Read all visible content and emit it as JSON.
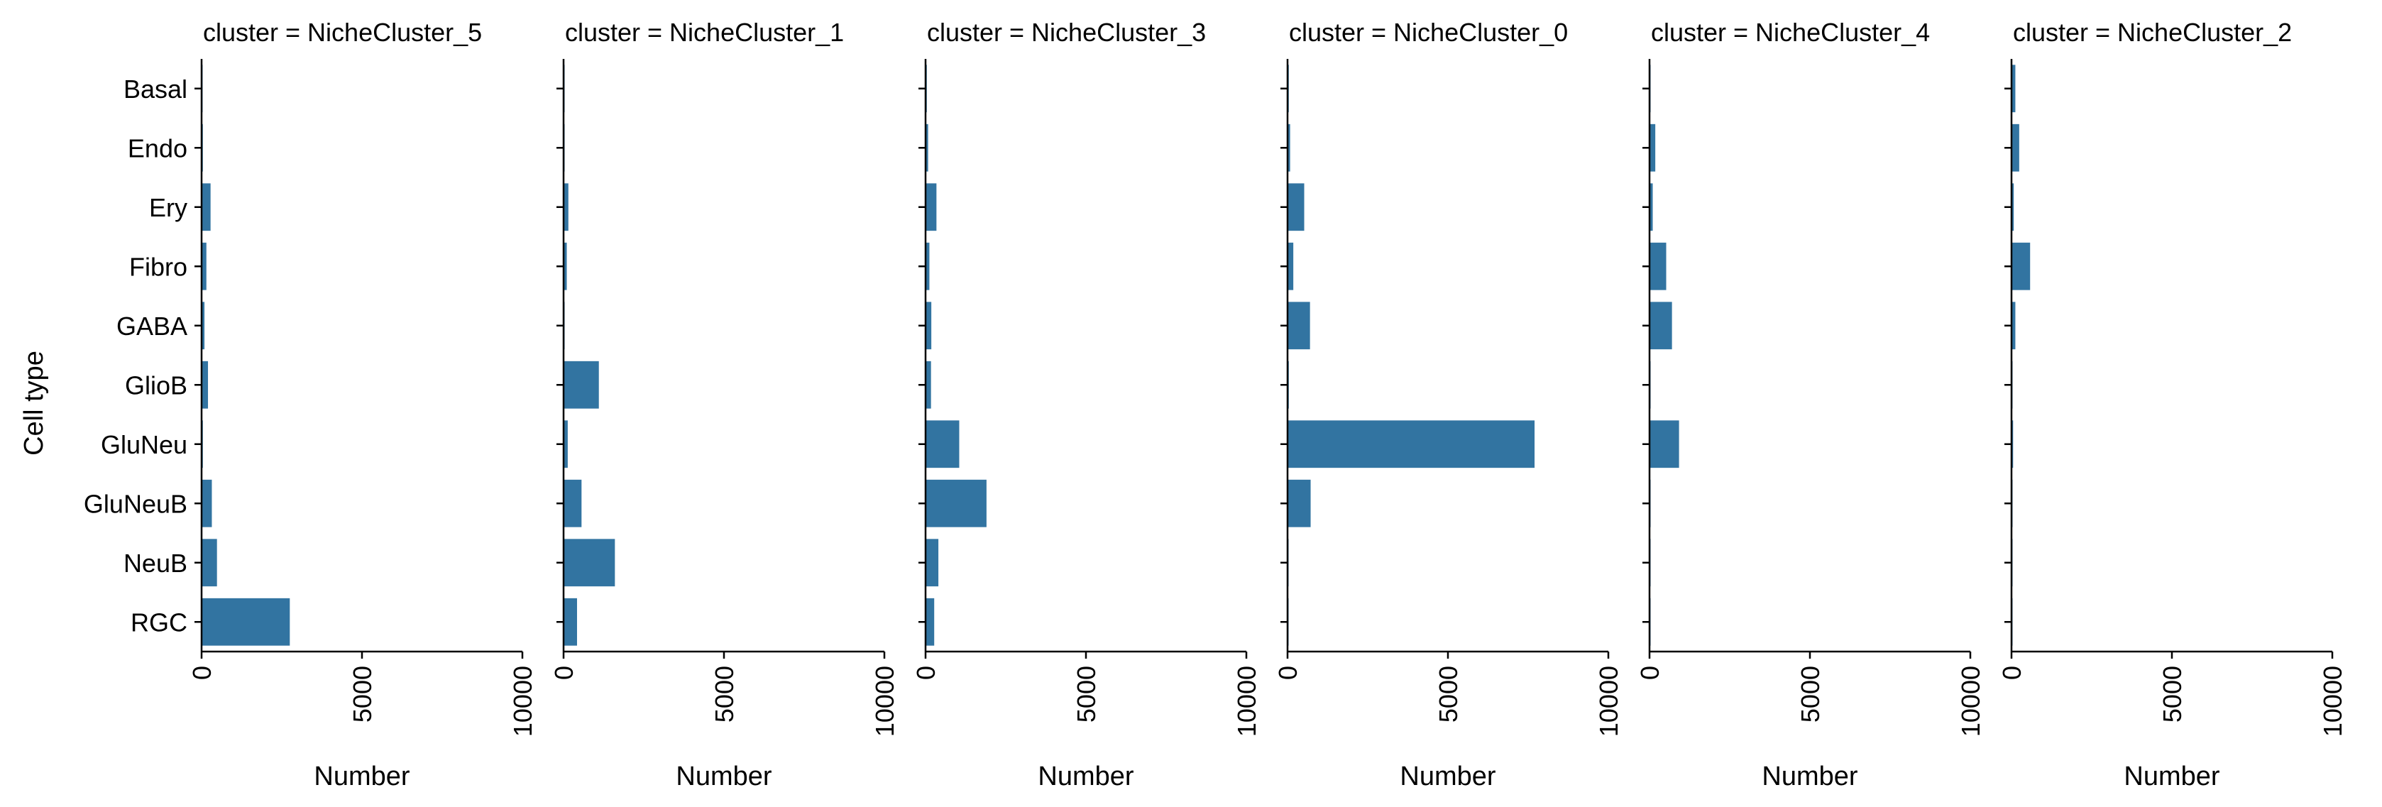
{
  "chart_data": {
    "type": "bar",
    "orientation": "horizontal",
    "ylabel": "Cell type",
    "xlabel": "Number",
    "xlim": [
      0,
      10000
    ],
    "xticks": [
      "0",
      "5000",
      "10000"
    ],
    "bar_color": "#3274a1",
    "categories": [
      "Basal",
      "Endo",
      "Ery",
      "Fibro",
      "GABA",
      "GlioB",
      "GluNeu",
      "GluNeuB",
      "NeuB",
      "RGC"
    ],
    "panels": [
      {
        "title": "cluster = NicheCluster_5",
        "values": [
          30,
          40,
          280,
          150,
          90,
          200,
          40,
          320,
          480,
          2750
        ]
      },
      {
        "title": "cluster = NicheCluster_1",
        "values": [
          20,
          30,
          150,
          100,
          30,
          1100,
          130,
          560,
          1600,
          420
        ]
      },
      {
        "title": "cluster = NicheCluster_3",
        "values": [
          40,
          80,
          340,
          120,
          180,
          170,
          1050,
          1900,
          400,
          270
        ]
      },
      {
        "title": "cluster = NicheCluster_0",
        "values": [
          40,
          80,
          520,
          180,
          700,
          40,
          7700,
          720,
          30,
          20
        ]
      },
      {
        "title": "cluster = NicheCluster_4",
        "values": [
          30,
          180,
          100,
          520,
          700,
          20,
          920,
          20,
          10,
          10
        ]
      },
      {
        "title": "cluster = NicheCluster_2",
        "values": [
          120,
          240,
          70,
          580,
          120,
          10,
          50,
          10,
          10,
          10
        ]
      }
    ]
  }
}
